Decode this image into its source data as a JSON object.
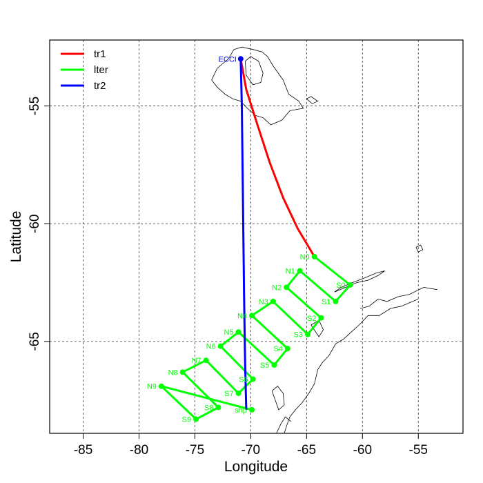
{
  "chart_data": {
    "type": "map",
    "xlabel": "Longitude",
    "ylabel": "Latitude",
    "xlim": [
      -88,
      -51
    ],
    "ylim": [
      -68.9,
      -52.2
    ],
    "x_ticks": [
      -85,
      -80,
      -75,
      -70,
      -65,
      -60,
      -55
    ],
    "y_ticks": [
      -55,
      -60,
      -65
    ],
    "grid": true,
    "legend": {
      "placement": "top-left",
      "entries": [
        {
          "label": "tr1",
          "color": "#ff0000"
        },
        {
          "label": "lter",
          "color": "#00ff00"
        },
        {
          "label": "tr2",
          "color": "#0000ff"
        }
      ]
    },
    "origin": {
      "label": "ECCI",
      "lon": -70.9,
      "lat": -53.0,
      "color": "#0000ff"
    },
    "stations": [
      {
        "label": "N0",
        "lon": -64.3,
        "lat": -61.4
      },
      {
        "label": "S0",
        "lon": -61.1,
        "lat": -62.6
      },
      {
        "label": "S1",
        "lon": -62.4,
        "lat": -63.3
      },
      {
        "label": "N1",
        "lon": -65.6,
        "lat": -62.0
      },
      {
        "label": "N2",
        "lon": -66.8,
        "lat": -62.7
      },
      {
        "label": "S2",
        "lon": -63.7,
        "lat": -64.0
      },
      {
        "label": "S3",
        "lon": -64.9,
        "lat": -64.7
      },
      {
        "label": "N3",
        "lon": -68.0,
        "lat": -63.3
      },
      {
        "label": "N4",
        "lon": -69.9,
        "lat": -63.9
      },
      {
        "label": "S4",
        "lon": -66.7,
        "lat": -65.3
      },
      {
        "label": "S5",
        "lon": -67.9,
        "lat": -66.0
      },
      {
        "label": "N5",
        "lon": -71.1,
        "lat": -64.6
      },
      {
        "label": "N6",
        "lon": -72.7,
        "lat": -65.2
      },
      {
        "label": "S6",
        "lon": -69.8,
        "lat": -66.6
      },
      {
        "label": "S7",
        "lon": -71.1,
        "lat": -67.2
      },
      {
        "label": "N7",
        "lon": -74.0,
        "lat": -65.8
      },
      {
        "label": "N8",
        "lon": -76.1,
        "lat": -66.3
      },
      {
        "label": "S8",
        "lon": -72.9,
        "lat": -67.8
      },
      {
        "label": "S9",
        "lon": -74.9,
        "lat": -68.3
      },
      {
        "label": "N9",
        "lon": -78.0,
        "lat": -66.9
      },
      {
        "label": "shp",
        "lon": -69.9,
        "lat": -67.9
      }
    ],
    "series": [
      {
        "name": "tr1",
        "color": "#ff0000",
        "lon": [
          -70.9,
          -70.4,
          -69.4,
          -68.3,
          -67.1,
          -65.8,
          -64.3
        ],
        "lat": [
          -53.0,
          -54.3,
          -55.8,
          -57.4,
          -58.9,
          -60.2,
          -61.4
        ]
      },
      {
        "name": "lter",
        "color": "#00ff00",
        "lon": [
          -64.3,
          -61.1,
          -62.4,
          -65.6,
          -66.8,
          -63.7,
          -64.9,
          -68.0,
          -69.9,
          -66.7,
          -67.9,
          -71.1,
          -72.7,
          -69.8,
          -71.1,
          -74.0,
          -76.1,
          -72.9,
          -74.9,
          -78.0,
          -69.9
        ],
        "lat": [
          -61.4,
          -62.6,
          -63.3,
          -62.0,
          -62.7,
          -64.0,
          -64.7,
          -63.3,
          -63.9,
          -65.3,
          -66.0,
          -64.6,
          -65.2,
          -66.6,
          -67.2,
          -65.8,
          -66.3,
          -67.8,
          -68.3,
          -66.9,
          -67.9
        ]
      },
      {
        "name": "tr2",
        "color": "#0000ff",
        "lon": [
          -70.9,
          -70.8,
          -70.7,
          -70.6,
          -70.5,
          -70.4
        ],
        "lat": [
          -53.0,
          -55.0,
          -59.0,
          -63.0,
          -66.0,
          -67.9
        ]
      }
    ],
    "coastlines": [
      {
        "name": "tierra-del-fuego",
        "lon": [
          -71.5,
          -70.8,
          -69.8,
          -69.0,
          -68.5,
          -68.0,
          -67.1,
          -66.6,
          -65.7,
          -65.3,
          -66.5,
          -67.2,
          -68.2,
          -68.9,
          -69.6,
          -70.3,
          -70.9,
          -71.6,
          -72.3,
          -73.0,
          -73.5,
          -73.0,
          -72.0,
          -71.5
        ],
        "lat": [
          -52.6,
          -52.5,
          -52.6,
          -52.7,
          -52.9,
          -53.3,
          -53.9,
          -54.5,
          -54.8,
          -55.1,
          -55.2,
          -55.6,
          -55.8,
          -55.5,
          -55.4,
          -55.1,
          -54.8,
          -54.7,
          -54.5,
          -54.2,
          -53.9,
          -53.4,
          -53.0,
          -52.6
        ]
      },
      {
        "name": "tierra-del-fuego-inner",
        "lon": [
          -70.5,
          -70.0,
          -69.3,
          -68.9,
          -69.1,
          -69.8,
          -70.4,
          -70.5
        ],
        "lat": [
          -53.1,
          -52.9,
          -53.1,
          -53.6,
          -54.0,
          -54.1,
          -53.7,
          -53.1
        ]
      },
      {
        "name": "isla-de-los-estados",
        "lon": [
          -65.0,
          -64.6,
          -64.0,
          -64.5,
          -65.0
        ],
        "lat": [
          -54.7,
          -54.6,
          -54.8,
          -54.9,
          -54.7
        ]
      },
      {
        "name": "antarctic-peninsula",
        "lon": [
          -55.0,
          -56.5,
          -57.5,
          -58.5,
          -59.5,
          -60.3,
          -61.0,
          -61.7,
          -62.4,
          -63.0,
          -63.6,
          -64.0,
          -64.3,
          -64.8,
          -65.4,
          -66.0,
          -66.5,
          -66.8,
          -67.0,
          -67.2,
          -67.7,
          -67.3,
          -66.9,
          -66.4
        ],
        "lat": [
          -63.2,
          -63.5,
          -63.6,
          -63.9,
          -63.9,
          -64.3,
          -64.6,
          -64.9,
          -65.1,
          -65.6,
          -65.9,
          -66.2,
          -66.8,
          -67.2,
          -67.6,
          -67.9,
          -68.2,
          -68.6,
          -68.9,
          -68.9,
          -68.9,
          -68.5,
          -68.2,
          -68.4
        ]
      },
      {
        "name": "peninsula-tip",
        "lon": [
          -53.3,
          -54.5,
          -55.8,
          -56.8,
          -57.8,
          -58.6,
          -59.4,
          -60.2
        ],
        "lat": [
          -62.8,
          -62.7,
          -63.0,
          -63.1,
          -63.3,
          -63.2,
          -63.5,
          -63.6
        ]
      },
      {
        "name": "south-shetland-islands",
        "lon": [
          -62.5,
          -61.5,
          -60.5,
          -59.5,
          -58.6,
          -58.0,
          -58.8,
          -59.8,
          -60.9,
          -61.9,
          -62.5
        ],
        "lat": [
          -62.9,
          -62.7,
          -62.5,
          -62.4,
          -62.2,
          -62.0,
          -62.1,
          -62.3,
          -62.5,
          -62.7,
          -62.9
        ]
      },
      {
        "name": "adelaide-island",
        "lon": [
          -68.1,
          -67.6,
          -67.1,
          -67.0,
          -67.5,
          -68.1
        ],
        "lat": [
          -67.1,
          -66.9,
          -67.2,
          -67.7,
          -67.9,
          -67.1
        ]
      },
      {
        "name": "anvers-island",
        "lon": [
          -64.6,
          -63.9,
          -63.5,
          -63.9,
          -64.6
        ],
        "lat": [
          -64.3,
          -64.1,
          -64.5,
          -64.8,
          -64.3
        ]
      },
      {
        "name": "small-island-east",
        "lon": [
          -55.2,
          -54.8,
          -54.6,
          -55.0,
          -55.2
        ],
        "lat": [
          -61.0,
          -60.9,
          -61.1,
          -61.2,
          -61.0
        ]
      }
    ]
  }
}
